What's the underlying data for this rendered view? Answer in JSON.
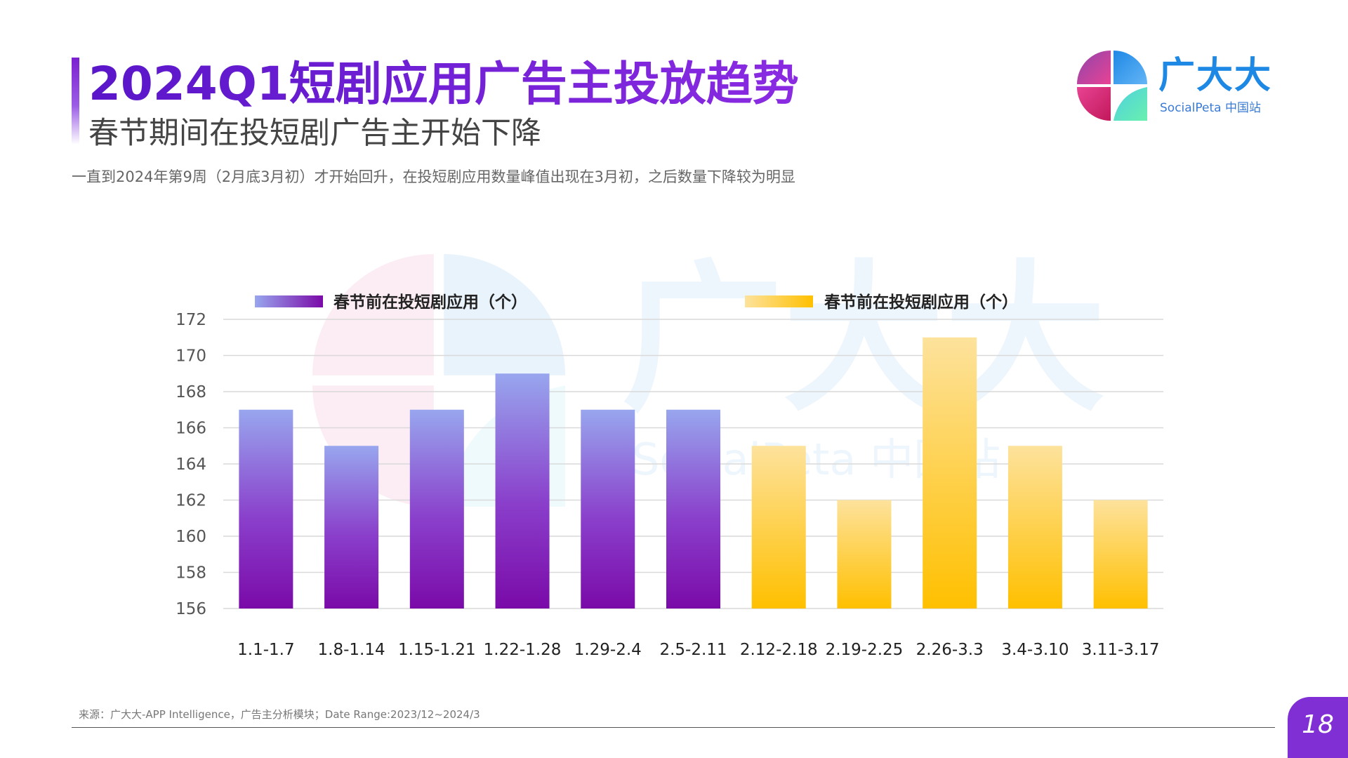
{
  "header": {
    "title": "2024Q1短剧应用广告主投放趋势",
    "subtitle": "春节期间在投短剧广告主开始下降",
    "description": "一直到2024年第9周（2月底3月初）才开始回升，在投短剧应用数量峰值出现在3月初，之后数量下降较为明显"
  },
  "logo": {
    "name": "广大大",
    "sub": "SocialPeta 中国站"
  },
  "watermark": {
    "name": "广大大",
    "sub": "SocialPeta 中国站"
  },
  "chart_data": {
    "type": "bar",
    "categories": [
      "1.1-1.7",
      "1.8-1.14",
      "1.15-1.21",
      "1.22-1.28",
      "1.29-2.4",
      "2.5-2.11",
      "2.12-2.18",
      "2.19-2.25",
      "2.26-3.3",
      "3.4-3.10",
      "3.11-3.17"
    ],
    "series": [
      {
        "name": "春节前在投短剧应用（个）",
        "values": [
          167,
          165,
          167,
          169,
          167,
          167,
          null,
          null,
          null,
          null,
          null
        ],
        "color": "#7a0aa8",
        "gradient": [
          "#98a6ee",
          "#7a0aa8"
        ]
      },
      {
        "name": "春节前在投短剧应用（个）",
        "values": [
          null,
          null,
          null,
          null,
          null,
          null,
          165,
          162,
          171,
          165,
          162
        ],
        "color": "#ffc000",
        "gradient": [
          "#fde29c",
          "#ffc000"
        ]
      }
    ],
    "ylim": [
      156,
      172
    ],
    "yticks": [
      156,
      158,
      160,
      162,
      164,
      166,
      168,
      170,
      172
    ],
    "grid": true,
    "legend": "top",
    "xlabel": "",
    "ylabel": ""
  },
  "footer": {
    "source": "来源：广大大-APP Intelligence，广告主分析模块；Date Range:2023/12~2024/3",
    "page": "18"
  },
  "colors": {
    "title": "#7b1fd1",
    "accent": "#7f2fd3",
    "logo": "#1e88e5"
  }
}
